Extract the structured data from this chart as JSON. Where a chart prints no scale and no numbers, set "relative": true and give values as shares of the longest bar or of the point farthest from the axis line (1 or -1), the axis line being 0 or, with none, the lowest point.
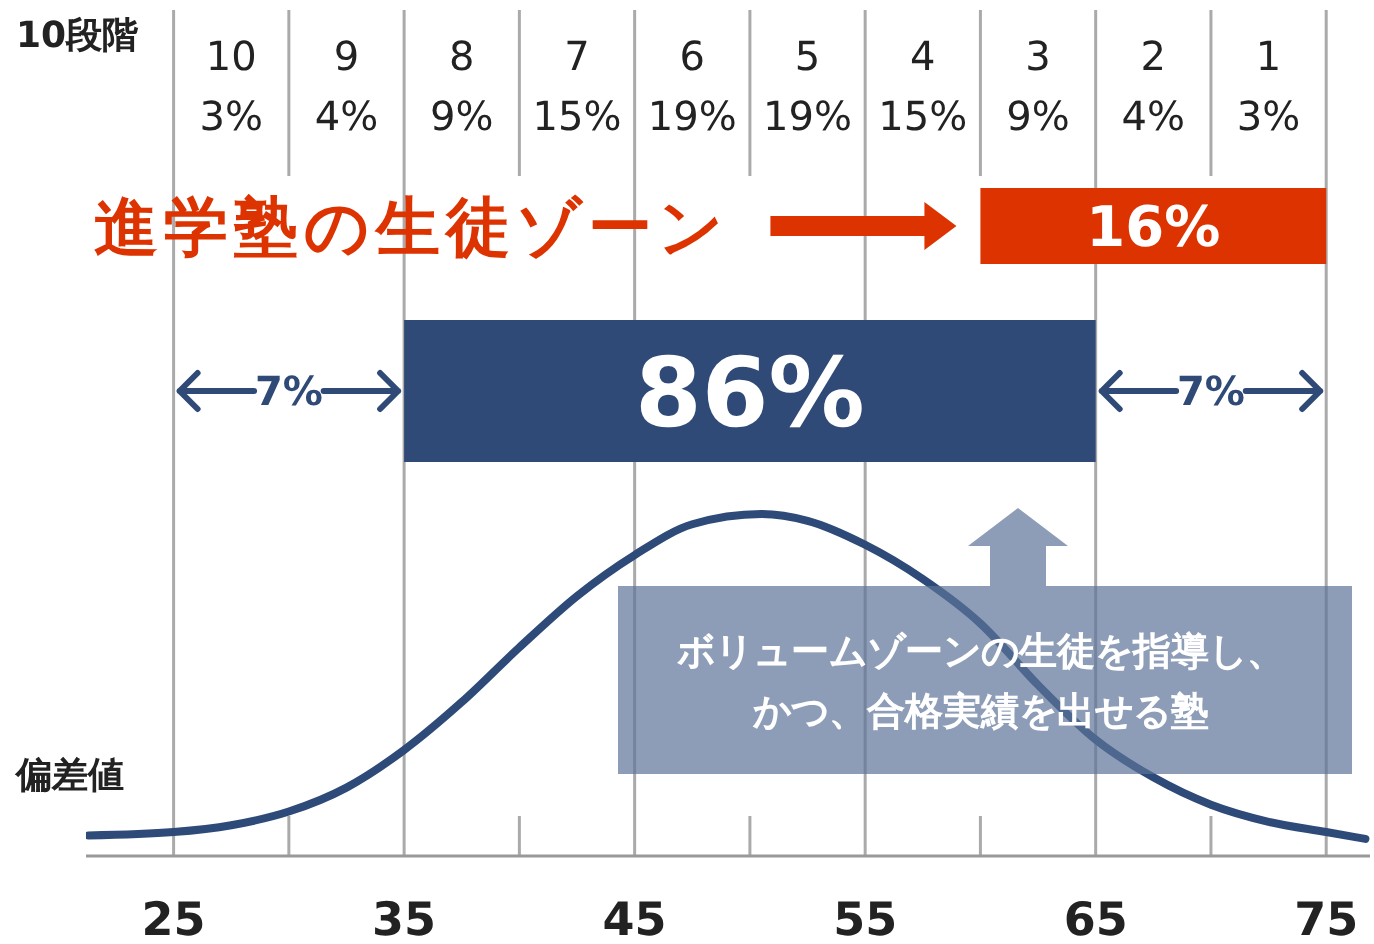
{
  "chart_data": {
    "type": "line",
    "xlabel": "偏差値",
    "relative": true,
    "xlim": [
      21.2,
      76.9
    ],
    "xticks": [
      25,
      35,
      45,
      55,
      65,
      75
    ],
    "grid": "x",
    "series": [
      {
        "color": "#2e4a78",
        "x": [
          21.3,
          25,
          27.5,
          30,
          32.5,
          35,
          37.5,
          40,
          42.5,
          45,
          47.5,
          50.5,
          52.5,
          55,
          57.5,
          60,
          62.5,
          65,
          67.5,
          70,
          72.5,
          75,
          76.7
        ],
        "values": [
          0.06,
          0.07,
          0.09,
          0.13,
          0.2,
          0.31,
          0.45,
          0.61,
          0.76,
          0.88,
          0.97,
          1,
          0.98,
          0.91,
          0.81,
          0.68,
          0.5,
          0.34,
          0.23,
          0.15,
          0.1,
          0.07,
          0.05
        ]
      }
    ],
    "annotations": [
      "10段階",
      "10\n3%",
      "9\n4%",
      "8\n9%",
      "7\n15%",
      "6\n19%",
      "5\n19%",
      "4\n15%",
      "3\n9%",
      "2\n4%",
      "1\n3%",
      "進学塾の生徒ゾーン",
      "16%",
      "86%",
      "7%",
      "7%",
      "ボリュームゾーンの生徒を指導し、かつ、合格実績を出せる塾"
    ]
  }
}
